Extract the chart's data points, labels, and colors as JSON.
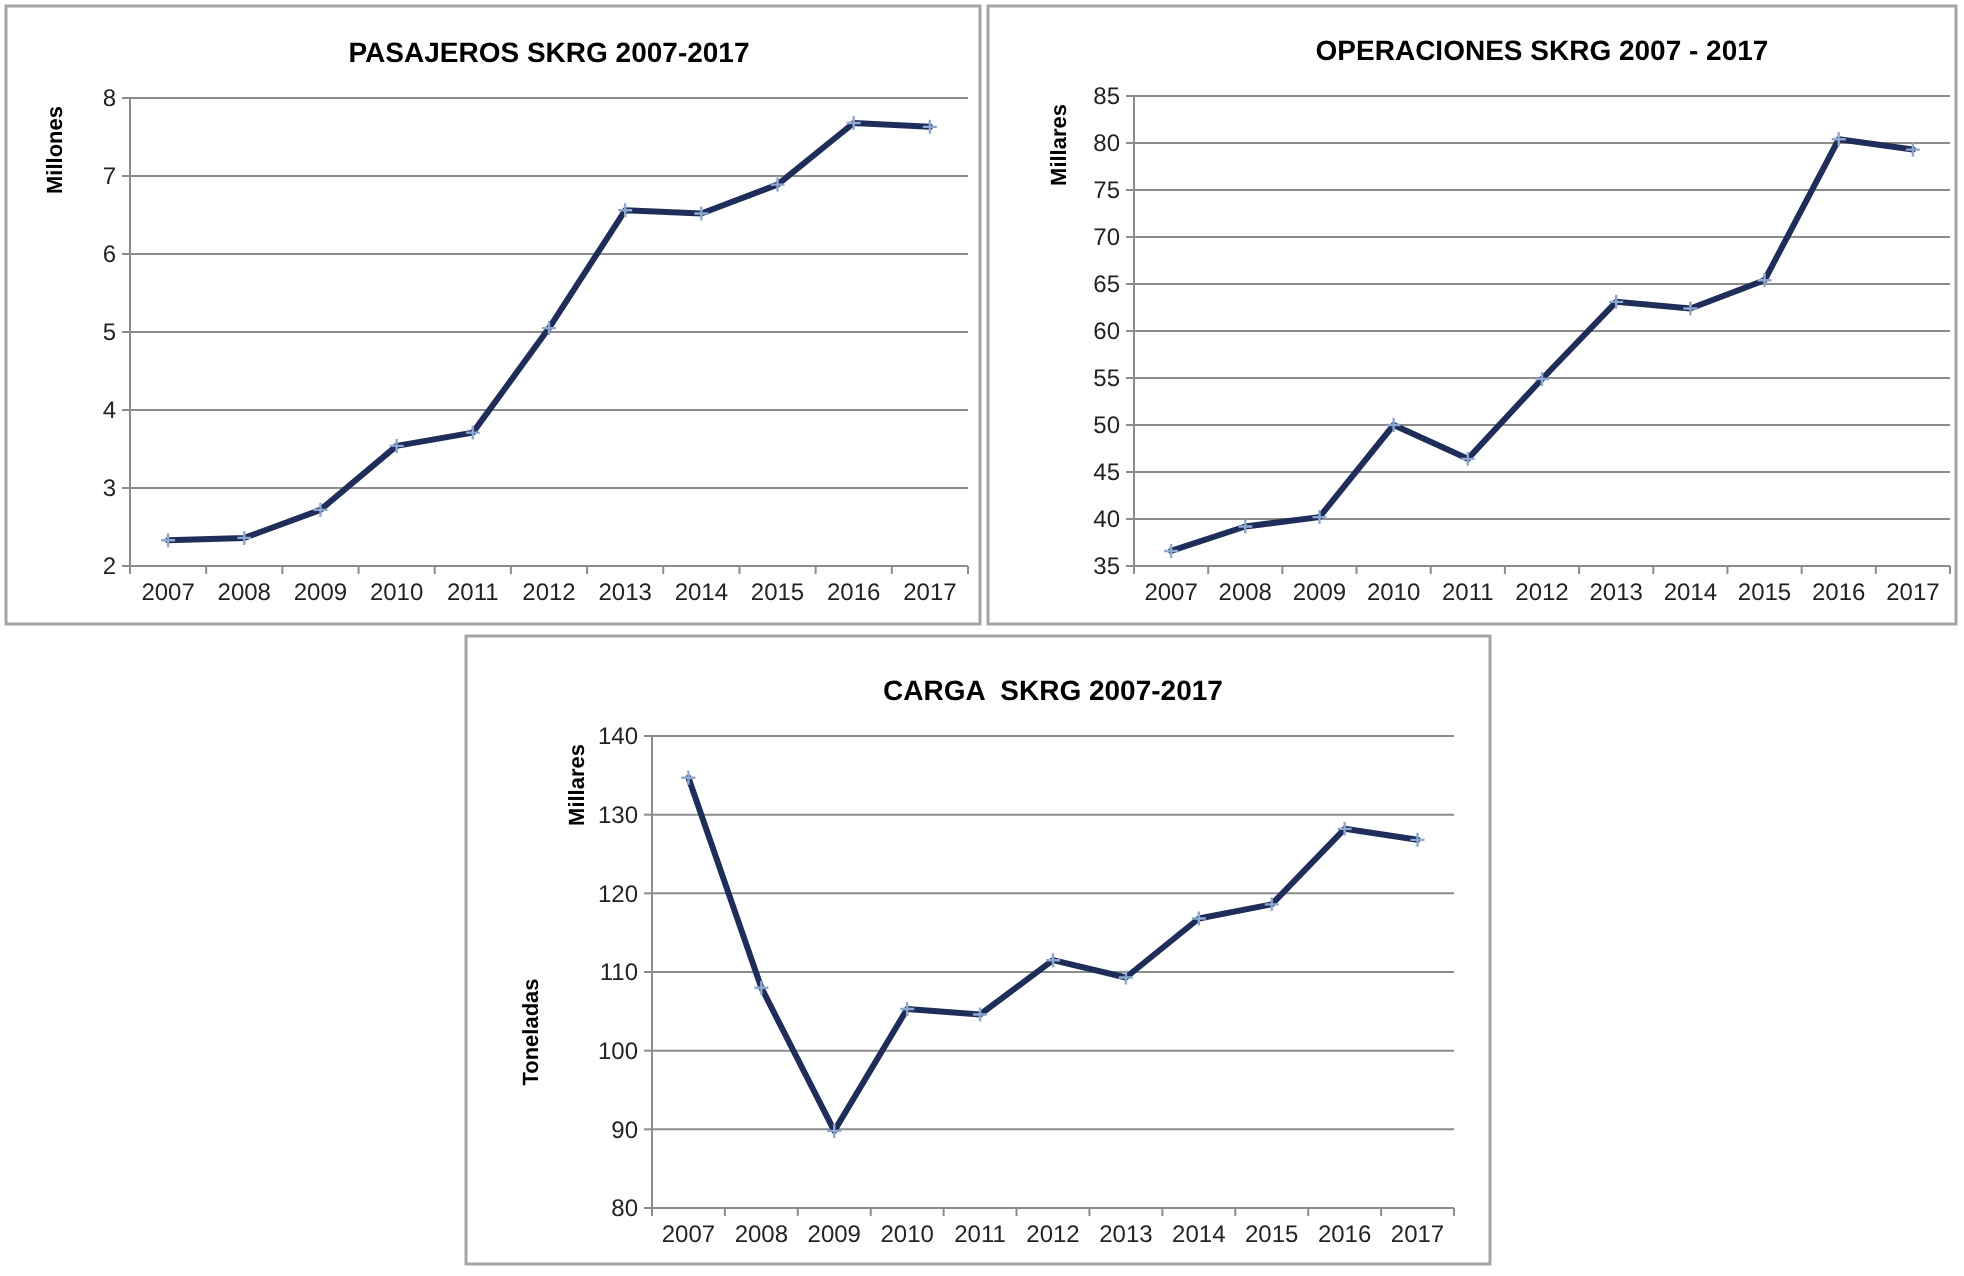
{
  "chart_data": [
    {
      "type": "line",
      "title": "PASAJEROS SKRG 2007-2017",
      "ylabel": "Millones",
      "categories": [
        "2007",
        "2008",
        "2009",
        "2010",
        "2011",
        "2012",
        "2013",
        "2014",
        "2015",
        "2016",
        "2017"
      ],
      "series": [
        {
          "color": "#1f2d5a",
          "values": [
            2.33,
            2.36,
            2.72,
            3.54,
            3.71,
            5.05,
            6.56,
            6.52,
            6.89,
            7.68,
            7.63
          ]
        }
      ],
      "ylim": [
        2,
        8
      ],
      "yticks": [
        2,
        3,
        4,
        5,
        6,
        7,
        8
      ],
      "grid": "y",
      "marker": "cross",
      "line_style": "solid"
    },
    {
      "type": "line",
      "title": "OPERACIONES SKRG 2007 - 2017",
      "ylabel": "Millares",
      "categories": [
        "2007",
        "2008",
        "2009",
        "2010",
        "2011",
        "2012",
        "2013",
        "2014",
        "2015",
        "2016",
        "2017"
      ],
      "series": [
        {
          "color": "#1f2d5a",
          "values": [
            36.6,
            39.2,
            40.2,
            50.0,
            46.4,
            54.9,
            63.1,
            62.4,
            65.4,
            80.4,
            79.3
          ]
        }
      ],
      "ylim": [
        35,
        85
      ],
      "yticks": [
        35,
        40,
        45,
        50,
        55,
        60,
        65,
        70,
        75,
        80,
        85
      ],
      "grid": "y",
      "marker": "cross",
      "line_style": "solid"
    },
    {
      "type": "line",
      "title": "CARGA  SKRG 2007-2017",
      "ylabel": "Millares",
      "annotations": [
        "Toneladas"
      ],
      "categories": [
        "2007",
        "2008",
        "2009",
        "2010",
        "2011",
        "2012",
        "2013",
        "2014",
        "2015",
        "2016",
        "2017"
      ],
      "series": [
        {
          "color": "#1f2d5a",
          "values": [
            134.7,
            108,
            89.8,
            105.3,
            104.6,
            111.5,
            109.3,
            116.8,
            118.6,
            128.2,
            126.8
          ]
        }
      ],
      "ylim": [
        80,
        140
      ],
      "yticks": [
        80,
        90,
        100,
        110,
        120,
        130,
        140
      ],
      "grid": "y",
      "marker": "cross",
      "line_style": "solid"
    }
  ]
}
